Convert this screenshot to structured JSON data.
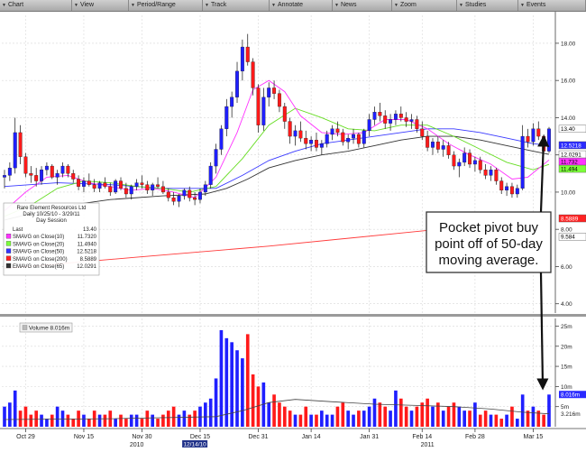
{
  "toolbar": {
    "items": [
      {
        "label": "Chart"
      },
      {
        "label": "View"
      },
      {
        "label": "Period/Range"
      },
      {
        "label": "Track"
      },
      {
        "label": "Annotate"
      },
      {
        "label": "News"
      },
      {
        "label": "Zoom"
      },
      {
        "label": "Studies"
      },
      {
        "label": "Events"
      }
    ]
  },
  "legend": {
    "title": "Rare Element Resources Ltd",
    "subtitle": "Daily 10/25/10 - 3/29/11",
    "session": "Day Session",
    "rows": [
      {
        "label": "Last",
        "value": "13.40",
        "color": ""
      },
      {
        "label": "SMAVG on Close(10)",
        "value": "11.7320",
        "color": "#ff33ff"
      },
      {
        "label": "SMAVG on Close(20)",
        "value": "11.4940",
        "color": "#7cff3a"
      },
      {
        "label": "SMAVG on Close(50)",
        "value": "12.5218",
        "color": "#3333ff"
      },
      {
        "label": "SMAVG on Close(200)",
        "value": "8.5889",
        "color": "#ff2222"
      },
      {
        "label": "EMAVG on Close(65)",
        "value": "12.0291",
        "color": "#333333"
      }
    ]
  },
  "volume_legend": {
    "label": "Volume 8.016m"
  },
  "annotation": {
    "text": [
      "Pocket pivot buy",
      "point off of 50-day",
      "moving average."
    ]
  },
  "right_labels": [
    {
      "text": "13.40",
      "price": 13.4,
      "bg": "#ffffff",
      "fg": "#000000"
    },
    {
      "text": "12.5218",
      "price": 12.52,
      "bg": "#2a2aff",
      "fg": "#ffffff"
    },
    {
      "text": "12.0291",
      "price": 12.03,
      "bg": "#ffffff",
      "fg": "#000000"
    },
    {
      "text": "11.732",
      "price": 11.73,
      "bg": "#ff33ff",
      "fg": "#000000"
    },
    {
      "text": "11.494",
      "price": 11.49,
      "bg": "#7cff3a",
      "fg": "#000000"
    },
    {
      "text": "9.584",
      "price": 7.6,
      "bg": "#ffffff",
      "fg": "#000000"
    },
    {
      "text": "8.5889",
      "price": 8.59,
      "bg": "#ff2222",
      "fg": "#ffffff"
    }
  ],
  "vol_label": {
    "text": "8.016m",
    "bg": "#2a2aff",
    "fg": "#ffffff"
  },
  "chart_data": {
    "type": "candlestick",
    "price_axis": {
      "ticks": [
        4,
        6,
        8,
        10,
        12,
        14,
        16,
        18
      ],
      "labels": [
        "4.00",
        "6.00",
        "8.00",
        "10.00",
        "12.00",
        "14.00",
        "16.00",
        "18.00"
      ],
      "ylim": [
        3.5,
        19.5
      ]
    },
    "volume_axis": {
      "ticks": [
        5,
        10,
        15,
        20,
        25
      ],
      "labels": [
        "5m",
        "10m",
        "15m",
        "20m",
        "25m"
      ],
      "ylim": [
        0,
        26
      ],
      "extra_label": "3.216m"
    },
    "x_labels": [
      {
        "text": "Oct 29",
        "i": 4
      },
      {
        "text": "Nov 15",
        "i": 15
      },
      {
        "text": "Nov 30",
        "i": 26
      },
      {
        "text": "Dec 15",
        "i": 37
      },
      {
        "text": "Dec 31",
        "i": 48
      },
      {
        "text": "Jan 14",
        "i": 58
      },
      {
        "text": "Jan 31",
        "i": 69
      },
      {
        "text": "Feb 14",
        "i": 79
      },
      {
        "text": "Feb 28",
        "i": 89
      },
      {
        "text": "Mar 15",
        "i": 100
      }
    ],
    "year_labels": [
      {
        "text": "2010",
        "i": 25
      },
      {
        "text": "2011",
        "i": 80
      }
    ],
    "date_box": {
      "text": "12/14/10",
      "i": 36
    },
    "ohlc": [
      [
        10.8,
        11.2,
        10.2,
        10.9
      ],
      [
        10.9,
        11.6,
        10.6,
        11.3
      ],
      [
        11.3,
        14.0,
        11.0,
        13.2
      ],
      [
        13.2,
        13.6,
        11.5,
        11.9
      ],
      [
        11.9,
        12.1,
        10.8,
        11.0
      ],
      [
        11.0,
        11.4,
        10.5,
        10.9
      ],
      [
        10.9,
        11.3,
        10.3,
        10.6
      ],
      [
        10.6,
        11.4,
        10.4,
        11.2
      ],
      [
        11.2,
        11.6,
        10.9,
        11.4
      ],
      [
        11.4,
        11.5,
        10.7,
        10.8
      ],
      [
        10.8,
        11.2,
        10.4,
        11.0
      ],
      [
        11.0,
        11.6,
        10.8,
        11.4
      ],
      [
        11.4,
        11.5,
        10.8,
        11.0
      ],
      [
        11.0,
        11.2,
        10.5,
        10.7
      ],
      [
        10.7,
        10.9,
        10.1,
        10.3
      ],
      [
        10.3,
        10.8,
        10.0,
        10.6
      ],
      [
        10.6,
        11.0,
        10.3,
        10.4
      ],
      [
        10.4,
        10.7,
        10.0,
        10.2
      ],
      [
        10.2,
        10.6,
        10.0,
        10.5
      ],
      [
        10.5,
        10.8,
        10.2,
        10.3
      ],
      [
        10.3,
        10.5,
        9.8,
        10.0
      ],
      [
        10.0,
        10.7,
        9.9,
        10.6
      ],
      [
        10.6,
        10.8,
        10.1,
        10.2
      ],
      [
        10.2,
        10.5,
        9.7,
        9.9
      ],
      [
        9.9,
        10.4,
        9.6,
        10.3
      ],
      [
        10.3,
        10.7,
        10.1,
        10.5
      ],
      [
        10.5,
        10.9,
        10.2,
        10.4
      ],
      [
        10.4,
        10.6,
        9.9,
        10.1
      ],
      [
        10.1,
        10.5,
        9.8,
        10.4
      ],
      [
        10.4,
        10.8,
        10.2,
        10.3
      ],
      [
        10.3,
        10.6,
        9.9,
        10.0
      ],
      [
        10.0,
        10.2,
        9.5,
        9.7
      ],
      [
        9.7,
        10.0,
        9.3,
        9.5
      ],
      [
        9.5,
        9.9,
        9.2,
        9.8
      ],
      [
        9.8,
        10.2,
        9.6,
        10.1
      ],
      [
        10.1,
        10.3,
        9.5,
        9.7
      ],
      [
        9.7,
        10.0,
        9.3,
        9.6
      ],
      [
        9.6,
        10.2,
        9.4,
        10.0
      ],
      [
        10.0,
        10.6,
        9.8,
        10.4
      ],
      [
        10.4,
        11.6,
        10.2,
        11.4
      ],
      [
        11.4,
        12.6,
        11.0,
        12.3
      ],
      [
        12.3,
        13.6,
        12.0,
        13.4
      ],
      [
        13.4,
        15.0,
        13.0,
        14.6
      ],
      [
        14.6,
        15.4,
        14.0,
        15.1
      ],
      [
        15.1,
        17.0,
        14.8,
        16.5
      ],
      [
        16.5,
        18.2,
        16.0,
        17.8
      ],
      [
        17.8,
        18.5,
        16.8,
        17.0
      ],
      [
        17.0,
        17.2,
        15.2,
        15.6
      ],
      [
        15.6,
        15.8,
        13.2,
        13.6
      ],
      [
        13.6,
        15.6,
        13.3,
        15.1
      ],
      [
        15.1,
        15.9,
        14.6,
        15.6
      ],
      [
        15.6,
        16.0,
        15.0,
        15.3
      ],
      [
        15.3,
        15.5,
        14.3,
        14.6
      ],
      [
        14.6,
        14.8,
        13.4,
        13.8
      ],
      [
        13.8,
        14.0,
        12.6,
        13.0
      ],
      [
        13.0,
        13.6,
        12.5,
        13.3
      ],
      [
        13.3,
        13.8,
        12.7,
        12.9
      ],
      [
        12.9,
        13.3,
        12.3,
        12.6
      ],
      [
        12.6,
        13.0,
        12.2,
        12.8
      ],
      [
        12.8,
        13.2,
        12.2,
        12.4
      ],
      [
        12.4,
        12.8,
        12.0,
        12.6
      ],
      [
        12.6,
        13.3,
        12.4,
        13.1
      ],
      [
        13.1,
        13.6,
        12.8,
        13.4
      ],
      [
        13.4,
        13.8,
        13.0,
        13.2
      ],
      [
        13.2,
        13.4,
        12.5,
        12.7
      ],
      [
        12.7,
        13.1,
        12.3,
        12.9
      ],
      [
        12.9,
        13.4,
        12.6,
        13.1
      ],
      [
        13.1,
        13.2,
        12.4,
        12.6
      ],
      [
        12.6,
        13.4,
        12.4,
        13.3
      ],
      [
        13.3,
        14.2,
        13.0,
        13.9
      ],
      [
        13.9,
        14.6,
        13.6,
        14.3
      ],
      [
        14.3,
        14.8,
        13.8,
        14.1
      ],
      [
        14.1,
        14.4,
        13.4,
        13.7
      ],
      [
        13.7,
        14.2,
        13.3,
        13.9
      ],
      [
        13.9,
        14.4,
        13.6,
        14.2
      ],
      [
        14.2,
        14.6,
        13.8,
        14.0
      ],
      [
        14.0,
        14.3,
        13.5,
        13.8
      ],
      [
        13.8,
        14.2,
        13.4,
        13.9
      ],
      [
        13.9,
        14.1,
        13.2,
        13.4
      ],
      [
        13.4,
        13.8,
        12.8,
        13.0
      ],
      [
        13.0,
        13.3,
        12.2,
        12.4
      ],
      [
        12.4,
        12.9,
        12.0,
        12.7
      ],
      [
        12.7,
        13.0,
        12.1,
        12.3
      ],
      [
        12.3,
        12.8,
        11.9,
        12.5
      ],
      [
        12.5,
        12.7,
        11.8,
        12.0
      ],
      [
        12.0,
        12.2,
        11.2,
        11.4
      ],
      [
        11.4,
        11.8,
        10.8,
        11.6
      ],
      [
        11.6,
        12.4,
        11.4,
        12.1
      ],
      [
        12.1,
        12.3,
        11.3,
        11.5
      ],
      [
        11.5,
        11.9,
        11.1,
        11.7
      ],
      [
        11.7,
        11.9,
        11.0,
        11.2
      ],
      [
        11.2,
        11.5,
        10.7,
        10.9
      ],
      [
        10.9,
        11.4,
        10.6,
        11.2
      ],
      [
        11.2,
        11.3,
        10.4,
        10.6
      ],
      [
        10.6,
        10.8,
        9.9,
        10.1
      ],
      [
        10.1,
        10.5,
        9.8,
        10.3
      ],
      [
        10.3,
        10.5,
        9.7,
        9.9
      ],
      [
        9.9,
        10.4,
        9.7,
        10.2
      ],
      [
        10.2,
        13.6,
        10.1,
        13.0
      ],
      [
        13.0,
        13.4,
        12.4,
        12.7
      ],
      [
        12.7,
        13.7,
        12.5,
        13.4
      ],
      [
        13.4,
        13.8,
        12.8,
        13.0
      ],
      [
        13.0,
        13.1,
        12.0,
        12.2
      ],
      [
        12.2,
        13.5,
        12.1,
        13.4
      ]
    ],
    "volume": [
      5,
      6,
      9,
      4,
      5,
      3,
      4,
      3,
      2,
      3,
      5,
      4,
      3,
      2,
      4,
      3,
      2,
      4,
      3,
      3,
      4,
      2,
      3,
      2,
      3,
      3,
      2,
      4,
      3,
      2,
      3,
      4,
      5,
      3,
      4,
      3,
      4,
      5,
      6,
      7,
      12,
      24,
      22,
      21,
      19,
      17,
      23,
      13,
      10,
      11,
      6,
      8,
      6,
      5,
      4,
      3,
      3,
      5,
      3,
      3,
      4,
      3,
      3,
      5,
      6,
      4,
      3,
      4,
      4,
      5,
      7,
      6,
      5,
      4,
      9,
      7,
      5,
      4,
      5,
      6,
      7,
      5,
      6,
      4,
      5,
      6,
      5,
      4,
      4,
      6,
      3,
      4,
      3,
      3,
      2,
      3,
      5,
      2,
      8,
      4,
      5,
      4,
      3,
      8
    ],
    "sma10": [
      [
        0,
        9.0
      ],
      [
        4,
        10.0
      ],
      [
        8,
        10.8
      ],
      [
        12,
        10.9
      ],
      [
        16,
        10.5
      ],
      [
        20,
        10.3
      ],
      [
        24,
        10.1
      ],
      [
        28,
        10.2
      ],
      [
        32,
        10.0
      ],
      [
        36,
        9.7
      ],
      [
        40,
        10.8
      ],
      [
        44,
        13.2
      ],
      [
        47,
        15.5
      ],
      [
        50,
        16.0
      ],
      [
        53,
        15.4
      ],
      [
        56,
        14.1
      ],
      [
        60,
        13.2
      ],
      [
        64,
        13.1
      ],
      [
        68,
        13.2
      ],
      [
        72,
        13.9
      ],
      [
        76,
        13.9
      ],
      [
        80,
        13.4
      ],
      [
        84,
        12.6
      ],
      [
        88,
        12.0
      ],
      [
        92,
        11.5
      ],
      [
        96,
        10.7
      ],
      [
        99,
        10.8
      ],
      [
        103,
        11.73
      ]
    ],
    "sma20": [
      [
        0,
        8.7
      ],
      [
        5,
        9.3
      ],
      [
        10,
        10.2
      ],
      [
        15,
        10.6
      ],
      [
        20,
        10.5
      ],
      [
        25,
        10.3
      ],
      [
        30,
        10.2
      ],
      [
        35,
        10.0
      ],
      [
        40,
        10.3
      ],
      [
        45,
        11.8
      ],
      [
        50,
        13.6
      ],
      [
        55,
        14.5
      ],
      [
        60,
        14.0
      ],
      [
        65,
        13.4
      ],
      [
        70,
        13.3
      ],
      [
        75,
        13.6
      ],
      [
        80,
        13.6
      ],
      [
        85,
        13.0
      ],
      [
        90,
        12.3
      ],
      [
        95,
        11.6
      ],
      [
        100,
        11.2
      ],
      [
        103,
        11.49
      ]
    ],
    "sma50": [
      [
        0,
        10.3
      ],
      [
        10,
        10.5
      ],
      [
        20,
        10.4
      ],
      [
        30,
        10.2
      ],
      [
        40,
        10.2
      ],
      [
        45,
        10.9
      ],
      [
        50,
        11.7
      ],
      [
        55,
        12.2
      ],
      [
        60,
        12.6
      ],
      [
        65,
        12.8
      ],
      [
        70,
        13.0
      ],
      [
        75,
        13.2
      ],
      [
        80,
        13.4
      ],
      [
        85,
        13.4
      ],
      [
        90,
        13.2
      ],
      [
        95,
        12.9
      ],
      [
        100,
        12.6
      ],
      [
        103,
        12.52
      ]
    ],
    "ema65": [
      [
        0,
        8.5
      ],
      [
        10,
        9.2
      ],
      [
        20,
        9.6
      ],
      [
        30,
        9.8
      ],
      [
        38,
        9.9
      ],
      [
        42,
        10.2
      ],
      [
        46,
        10.7
      ],
      [
        50,
        11.3
      ],
      [
        55,
        11.7
      ],
      [
        60,
        12.0
      ],
      [
        65,
        12.2
      ],
      [
        70,
        12.5
      ],
      [
        75,
        12.8
      ],
      [
        80,
        13.0
      ],
      [
        85,
        13.0
      ],
      [
        90,
        12.8
      ],
      [
        95,
        12.5
      ],
      [
        100,
        12.2
      ],
      [
        103,
        12.03
      ]
    ],
    "sma200": [
      [
        0,
        5.9
      ],
      [
        25,
        6.5
      ],
      [
        50,
        7.1
      ],
      [
        75,
        7.8
      ],
      [
        103,
        8.59
      ]
    ],
    "vol_avg": [
      [
        0,
        1.8
      ],
      [
        20,
        2.0
      ],
      [
        40,
        2.5
      ],
      [
        45,
        4.0
      ],
      [
        50,
        6.0
      ],
      [
        55,
        6.8
      ],
      [
        62,
        6.2
      ],
      [
        70,
        5.6
      ],
      [
        78,
        5.3
      ],
      [
        85,
        5.0
      ],
      [
        92,
        4.4
      ],
      [
        98,
        3.6
      ],
      [
        103,
        3.2
      ]
    ]
  }
}
